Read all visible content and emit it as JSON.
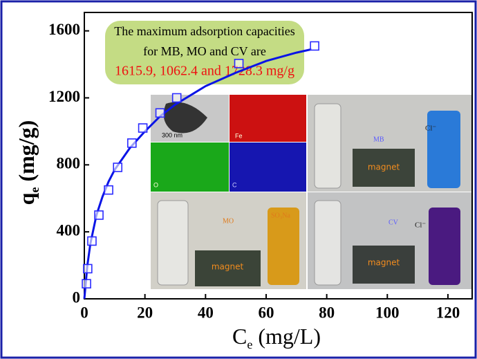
{
  "chart_data": {
    "type": "scatter",
    "xlabel": {
      "main": "C",
      "sub": "e",
      "unit": "(mg/L)"
    },
    "ylabel": {
      "main": "q",
      "sub": "e",
      "unit": "(mg/g)"
    },
    "xlim": [
      0,
      128
    ],
    "ylim": [
      0,
      1710
    ],
    "xticks": [
      0,
      20,
      40,
      60,
      80,
      100,
      120
    ],
    "yticks": [
      0,
      400,
      800,
      1200,
      1600
    ],
    "series": [
      {
        "kind": "scatter",
        "color": "#2a2aff",
        "x": [
          0.7,
          1.1,
          2.5,
          4.8,
          8,
          11,
          15.7,
          19.3,
          25,
          30.5,
          51,
          76
        ],
        "values": [
          90,
          180,
          345,
          500,
          650,
          785,
          930,
          1020,
          1110,
          1200,
          1405,
          1510
        ]
      },
      {
        "kind": "line",
        "color": "#0a14e6",
        "x": [
          0,
          1,
          2,
          4,
          6,
          8,
          10,
          15,
          20,
          25,
          30,
          40,
          50,
          60,
          70,
          75
        ],
        "values": [
          0,
          200,
          330,
          500,
          610,
          700,
          770,
          900,
          1000,
          1090,
          1160,
          1270,
          1350,
          1420,
          1470,
          1490
        ]
      }
    ],
    "annotation": [
      "The maximum adsorption capacities",
      "for MB, MO and CV are",
      "1615.9, 1062.4 and 1728.3 mg/g"
    ],
    "inset_labels": {
      "scale": "300 nm",
      "fe": "Fe",
      "o": "O",
      "c": "C",
      "magnet": "magnet",
      "mb": "MB",
      "mo": "MO",
      "cv": "CV",
      "cl": "Cl⁻",
      "so3na": "SO₃Na"
    }
  }
}
